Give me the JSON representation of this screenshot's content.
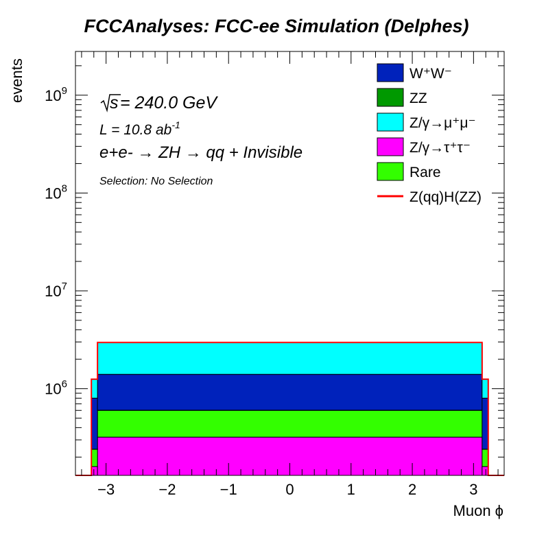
{
  "chart_data": {
    "type": "bar",
    "title": "FCCAnalyses: FCC-ee Simulation (Delphes)",
    "xlabel": "Muon ϕ",
    "ylabel": "events",
    "xlim": [
      -3.5,
      3.5
    ],
    "ylim": [
      130000,
      2800000000
    ],
    "yscale": "log",
    "x_ticks": [
      -3,
      -2,
      -1,
      0,
      1,
      2,
      3
    ],
    "x_tick_labels": [
      "−3",
      "−2",
      "−1",
      "0",
      "1",
      "2",
      "3"
    ],
    "y_ticks": [
      1000000,
      10000000,
      100000000,
      1000000000
    ],
    "y_tick_labels": [
      {
        "base": "10",
        "exp": "6"
      },
      {
        "base": "10",
        "exp": "7"
      },
      {
        "base": "10",
        "exp": "8"
      },
      {
        "base": "10",
        "exp": "9"
      }
    ],
    "stacked": true,
    "bin_edges": [
      -3.5,
      -3.24,
      -3.14,
      3.14,
      3.24,
      3.5
    ],
    "series": [
      {
        "name": "Z/γ→τ⁺τ⁻",
        "color": "#ff00ff",
        "values": [
          0,
          160000,
          320000,
          160000,
          0
        ]
      },
      {
        "name": "Rare",
        "color": "#33ff00",
        "values": [
          0,
          80000,
          280000,
          80000,
          0
        ]
      },
      {
        "name": "ZZ",
        "color": "#009900",
        "values": [
          0,
          1000,
          3000,
          1000,
          0
        ]
      },
      {
        "name": "W⁺W⁻",
        "color": "#0022bb",
        "values": [
          0,
          560000,
          800000,
          560000,
          0
        ]
      },
      {
        "name": "Z/γ→μ⁺μ⁻",
        "color": "#00ffff",
        "values": [
          0,
          450000,
          1570000,
          450000,
          0
        ]
      }
    ],
    "signal": {
      "name": "Z(qq)H(ZZ)",
      "color": "#ff0000",
      "values": [
        0,
        1250000,
        2970000,
        1250000,
        0
      ]
    },
    "legend_position": "top-right",
    "legend_order": [
      "W⁺W⁻",
      "ZZ",
      "Z/γ→μ⁺μ⁻",
      "Z/γ→τ⁺τ⁻",
      "Rare",
      "Z(qq)H(ZZ)"
    ],
    "annotations": {
      "sqrt_s": {
        "sym": "s",
        "value": " = 240.0 GeV"
      },
      "lumi": {
        "text": "L = 10.8 ab",
        "exp": "-1"
      },
      "process": "e+e- → ZH → qq + Invisible",
      "selection": "Selection: No Selection"
    }
  }
}
